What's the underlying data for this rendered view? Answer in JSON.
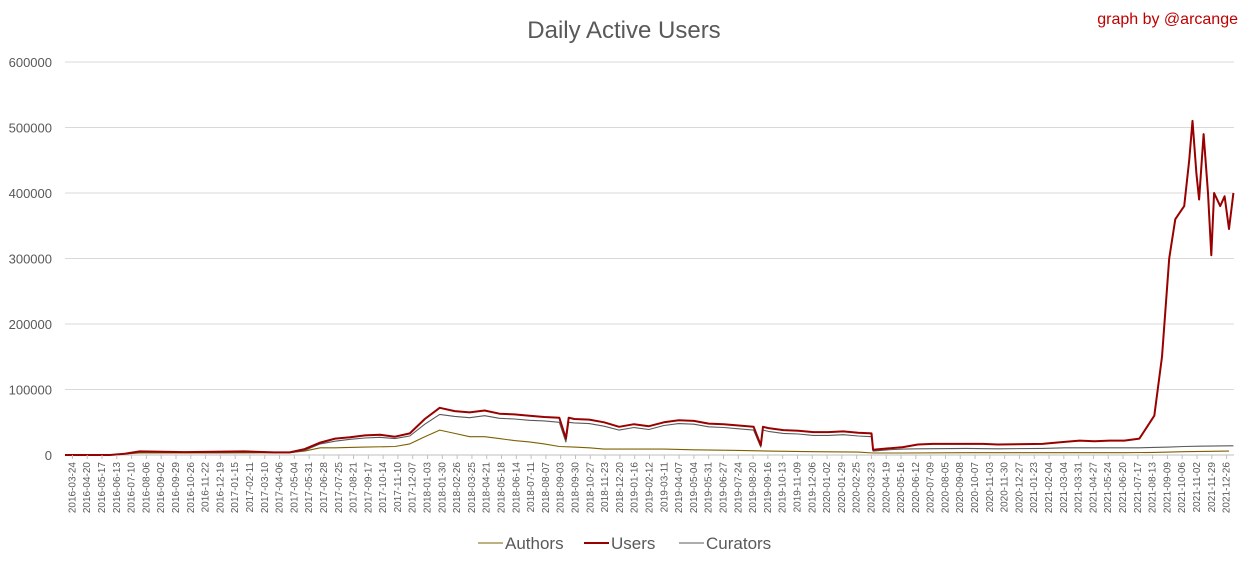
{
  "chart_data": {
    "type": "line",
    "title": "Daily Active Users",
    "credit": "graph by @arcange",
    "xlabel": "",
    "ylabel": "",
    "ylim": [
      0,
      600000
    ],
    "yticks": [
      0,
      100000,
      200000,
      300000,
      400000,
      500000,
      600000
    ],
    "xticks": [
      "2016-03-24",
      "2016-04-20",
      "2016-05-17",
      "2016-06-13",
      "2016-07-10",
      "2016-08-06",
      "2016-09-02",
      "2016-09-29",
      "2016-10-26",
      "2016-11-22",
      "2016-12-19",
      "2017-01-15",
      "2017-02-11",
      "2017-03-10",
      "2017-04-06",
      "2017-05-04",
      "2017-05-31",
      "2017-06-28",
      "2017-07-25",
      "2017-08-21",
      "2017-09-17",
      "2017-10-14",
      "2017-11-10",
      "2017-12-07",
      "2018-01-03",
      "2018-01-30",
      "2018-02-26",
      "2018-03-25",
      "2018-04-21",
      "2018-05-18",
      "2018-06-14",
      "2018-07-11",
      "2018-08-07",
      "2018-09-03",
      "2018-09-30",
      "2018-10-27",
      "2018-11-23",
      "2018-12-20",
      "2019-01-16",
      "2019-02-12",
      "2019-03-11",
      "2019-04-07",
      "2019-05-04",
      "2019-05-31",
      "2019-06-27",
      "2019-07-24",
      "2019-08-20",
      "2019-09-16",
      "2019-10-13",
      "2019-11-09",
      "2019-12-06",
      "2020-01-02",
      "2020-01-29",
      "2020-02-25",
      "2020-03-23",
      "2020-04-19",
      "2020-05-16",
      "2020-06-12",
      "2020-07-09",
      "2020-08-05",
      "2020-09-08",
      "2020-10-07",
      "2020-11-03",
      "2020-11-30",
      "2020-12-27",
      "2021-01-23",
      "2021-02-04",
      "2021-03-04",
      "2021-03-31",
      "2021-04-27",
      "2021-05-24",
      "2021-06-20",
      "2021-07-17",
      "2021-08-13",
      "2021-09-09",
      "2021-10-06",
      "2021-11-02",
      "2021-11-29",
      "2021-12-26"
    ],
    "grid": true,
    "legend_position": "bottom",
    "series": [
      {
        "name": "Authors",
        "color": "#7f6000",
        "points": [
          [
            "2016-03-24",
            0
          ],
          [
            "2016-06-13",
            0
          ],
          [
            "2016-07-10",
            1500
          ],
          [
            "2016-08-06",
            3000
          ],
          [
            "2016-12-19",
            3000
          ],
          [
            "2017-04-06",
            3500
          ],
          [
            "2017-05-04",
            3500
          ],
          [
            "2017-05-31",
            6000
          ],
          [
            "2017-06-28",
            11000
          ],
          [
            "2017-07-25",
            11000
          ],
          [
            "2017-09-17",
            12000
          ],
          [
            "2017-11-10",
            13000
          ],
          [
            "2017-12-07",
            17000
          ],
          [
            "2018-01-03",
            28000
          ],
          [
            "2018-01-30",
            38000
          ],
          [
            "2018-02-26",
            33000
          ],
          [
            "2018-03-25",
            28000
          ],
          [
            "2018-04-21",
            28000
          ],
          [
            "2018-05-18",
            25000
          ],
          [
            "2018-06-14",
            22000
          ],
          [
            "2018-07-11",
            20000
          ],
          [
            "2018-08-07",
            17000
          ],
          [
            "2018-09-03",
            13000
          ],
          [
            "2018-09-30",
            12000
          ],
          [
            "2018-10-27",
            11000
          ],
          [
            "2018-11-23",
            9000
          ],
          [
            "2018-12-20",
            9000
          ],
          [
            "2019-03-11",
            9000
          ],
          [
            "2019-05-04",
            8000
          ],
          [
            "2019-07-24",
            7000
          ],
          [
            "2019-09-16",
            6000
          ],
          [
            "2019-12-06",
            5000
          ],
          [
            "2020-02-25",
            4500
          ],
          [
            "2020-03-23",
            3000
          ],
          [
            "2020-05-16",
            3000
          ],
          [
            "2020-09-08",
            3500
          ],
          [
            "2021-01-23",
            3500
          ],
          [
            "2021-06-20",
            3500
          ],
          [
            "2021-08-13",
            4000
          ],
          [
            "2021-10-06",
            5000
          ],
          [
            "2021-12-26",
            6000
          ]
        ]
      },
      {
        "name": "Users",
        "color": "#990000",
        "points": [
          [
            "2016-03-24",
            0
          ],
          [
            "2016-06-13",
            0
          ],
          [
            "2016-07-10",
            2000
          ],
          [
            "2016-08-06",
            5500
          ],
          [
            "2016-10-26",
            4500
          ],
          [
            "2016-12-19",
            5000
          ],
          [
            "2017-02-11",
            5500
          ],
          [
            "2017-04-06",
            4000
          ],
          [
            "2017-05-04",
            4000
          ],
          [
            "2017-05-31",
            9000
          ],
          [
            "2017-06-28",
            19000
          ],
          [
            "2017-07-25",
            25000
          ],
          [
            "2017-08-21",
            27000
          ],
          [
            "2017-09-17",
            30000
          ],
          [
            "2017-10-14",
            31000
          ],
          [
            "2017-11-10",
            28000
          ],
          [
            "2017-12-07",
            33000
          ],
          [
            "2018-01-03",
            55000
          ],
          [
            "2018-01-30",
            72000
          ],
          [
            "2018-02-26",
            67000
          ],
          [
            "2018-03-25",
            65000
          ],
          [
            "2018-04-21",
            68000
          ],
          [
            "2018-05-18",
            63000
          ],
          [
            "2018-06-14",
            62000
          ],
          [
            "2018-07-11",
            60000
          ],
          [
            "2018-08-07",
            58000
          ],
          [
            "2018-09-03",
            57000
          ],
          [
            "2018-09-15",
            25000
          ],
          [
            "2018-09-20",
            57000
          ],
          [
            "2018-09-30",
            55000
          ],
          [
            "2018-10-27",
            54000
          ],
          [
            "2018-11-23",
            50000
          ],
          [
            "2018-12-20",
            43000
          ],
          [
            "2019-01-16",
            47000
          ],
          [
            "2019-02-12",
            44000
          ],
          [
            "2019-03-11",
            50000
          ],
          [
            "2019-04-07",
            53000
          ],
          [
            "2019-05-04",
            52000
          ],
          [
            "2019-05-31",
            48000
          ],
          [
            "2019-06-27",
            47000
          ],
          [
            "2019-07-24",
            45000
          ],
          [
            "2019-08-20",
            43000
          ],
          [
            "2019-09-02",
            15000
          ],
          [
            "2019-09-06",
            43000
          ],
          [
            "2019-09-16",
            41000
          ],
          [
            "2019-10-13",
            38000
          ],
          [
            "2019-11-09",
            37000
          ],
          [
            "2019-12-06",
            35000
          ],
          [
            "2020-01-02",
            35000
          ],
          [
            "2020-01-29",
            36000
          ],
          [
            "2020-02-25",
            34000
          ],
          [
            "2020-03-20",
            33000
          ],
          [
            "2020-03-23",
            8000
          ],
          [
            "2020-04-19",
            10000
          ],
          [
            "2020-05-16",
            12000
          ],
          [
            "2020-06-12",
            16000
          ],
          [
            "2020-07-09",
            17000
          ],
          [
            "2020-09-08",
            17000
          ],
          [
            "2020-10-07",
            17000
          ],
          [
            "2020-11-03",
            16000
          ],
          [
            "2021-01-23",
            17000
          ],
          [
            "2021-02-04",
            18000
          ],
          [
            "2021-03-04",
            20000
          ],
          [
            "2021-03-31",
            22000
          ],
          [
            "2021-04-27",
            21000
          ],
          [
            "2021-05-24",
            22000
          ],
          [
            "2021-06-20",
            22000
          ],
          [
            "2021-07-17",
            25000
          ],
          [
            "2021-08-13",
            60000
          ],
          [
            "2021-08-27",
            150000
          ],
          [
            "2021-09-09",
            300000
          ],
          [
            "2021-09-20",
            360000
          ],
          [
            "2021-10-06",
            380000
          ],
          [
            "2021-10-15",
            450000
          ],
          [
            "2021-10-21",
            510000
          ],
          [
            "2021-10-28",
            430000
          ],
          [
            "2021-11-02",
            390000
          ],
          [
            "2021-11-10",
            490000
          ],
          [
            "2021-11-18",
            400000
          ],
          [
            "2021-11-24",
            305000
          ],
          [
            "2021-11-29",
            400000
          ],
          [
            "2021-12-10",
            380000
          ],
          [
            "2021-12-18",
            395000
          ],
          [
            "2021-12-26",
            345000
          ],
          [
            "2022-01-03",
            400000
          ]
        ]
      },
      {
        "name": "Curators",
        "color": "#595959",
        "points": [
          [
            "2016-03-24",
            0
          ],
          [
            "2016-06-13",
            0
          ],
          [
            "2016-07-10",
            1500
          ],
          [
            "2016-08-06",
            4500
          ],
          [
            "2016-12-19",
            4000
          ],
          [
            "2017-02-11",
            4500
          ],
          [
            "2017-04-06",
            3500
          ],
          [
            "2017-05-04",
            3500
          ],
          [
            "2017-05-31",
            7000
          ],
          [
            "2017-06-28",
            17000
          ],
          [
            "2017-07-25",
            21000
          ],
          [
            "2017-08-21",
            24000
          ],
          [
            "2017-09-17",
            26000
          ],
          [
            "2017-10-14",
            27000
          ],
          [
            "2017-11-10",
            25000
          ],
          [
            "2017-12-07",
            29000
          ],
          [
            "2018-01-03",
            47000
          ],
          [
            "2018-01-30",
            62000
          ],
          [
            "2018-02-26",
            59000
          ],
          [
            "2018-03-25",
            57000
          ],
          [
            "2018-04-21",
            60000
          ],
          [
            "2018-05-18",
            56000
          ],
          [
            "2018-06-14",
            55000
          ],
          [
            "2018-07-11",
            53000
          ],
          [
            "2018-08-07",
            52000
          ],
          [
            "2018-09-03",
            50000
          ],
          [
            "2018-09-15",
            20000
          ],
          [
            "2018-09-20",
            50000
          ],
          [
            "2018-09-30",
            49000
          ],
          [
            "2018-10-27",
            48000
          ],
          [
            "2018-11-23",
            44000
          ],
          [
            "2018-12-20",
            38000
          ],
          [
            "2019-01-16",
            42000
          ],
          [
            "2019-02-12",
            39000
          ],
          [
            "2019-03-11",
            45000
          ],
          [
            "2019-04-07",
            48000
          ],
          [
            "2019-05-04",
            47000
          ],
          [
            "2019-05-31",
            43000
          ],
          [
            "2019-06-27",
            42000
          ],
          [
            "2019-07-24",
            40000
          ],
          [
            "2019-08-20",
            38000
          ],
          [
            "2019-09-02",
            12000
          ],
          [
            "2019-09-06",
            38000
          ],
          [
            "2019-09-16",
            36000
          ],
          [
            "2019-10-13",
            33000
          ],
          [
            "2019-11-09",
            32000
          ],
          [
            "2019-12-06",
            30000
          ],
          [
            "2020-01-02",
            30000
          ],
          [
            "2020-01-29",
            31000
          ],
          [
            "2020-02-25",
            29000
          ],
          [
            "2020-03-20",
            28000
          ],
          [
            "2020-03-23",
            6000
          ],
          [
            "2020-04-19",
            8000
          ],
          [
            "2020-05-16",
            9000
          ],
          [
            "2020-06-12",
            9500
          ],
          [
            "2020-09-08",
            10000
          ],
          [
            "2020-11-03",
            9500
          ],
          [
            "2021-01-23",
            10000
          ],
          [
            "2021-03-04",
            11000
          ],
          [
            "2021-06-20",
            11000
          ],
          [
            "2021-07-17",
            11000
          ],
          [
            "2021-09-09",
            12000
          ],
          [
            "2021-10-06",
            13000
          ],
          [
            "2021-11-02",
            13500
          ],
          [
            "2021-12-26",
            14000
          ],
          [
            "2022-01-03",
            14000
          ]
        ]
      }
    ]
  }
}
